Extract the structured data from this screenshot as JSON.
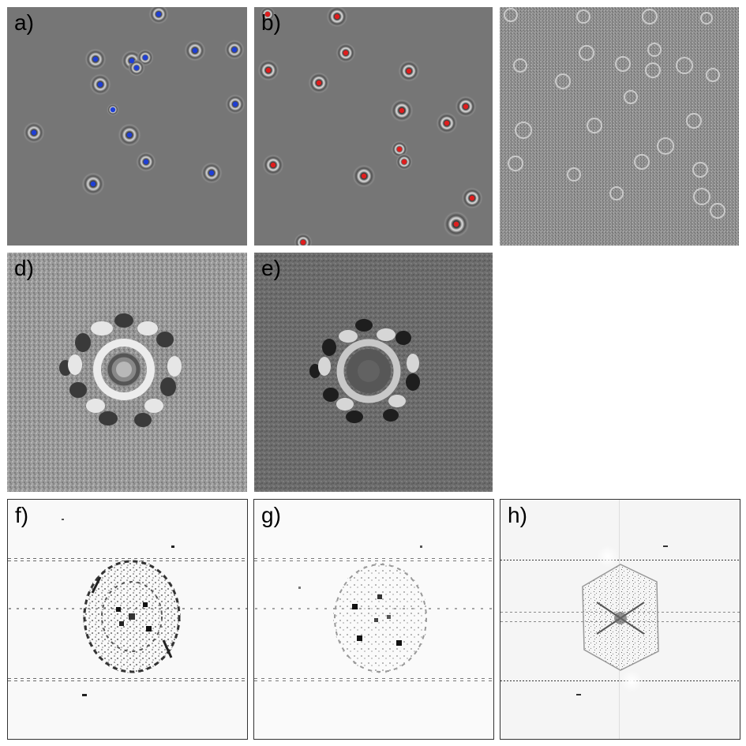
{
  "panels": {
    "a": {
      "label": "a)",
      "marker_color": "#1f3fd6"
    },
    "b": {
      "label": "b)",
      "marker_color": "#e01d1d"
    },
    "c": {
      "label": ""
    },
    "d": {
      "label": "d)"
    },
    "e": {
      "label": "e)"
    },
    "f": {
      "label": "f)"
    },
    "g": {
      "label": "g)"
    },
    "h": {
      "label": "h)"
    }
  }
}
